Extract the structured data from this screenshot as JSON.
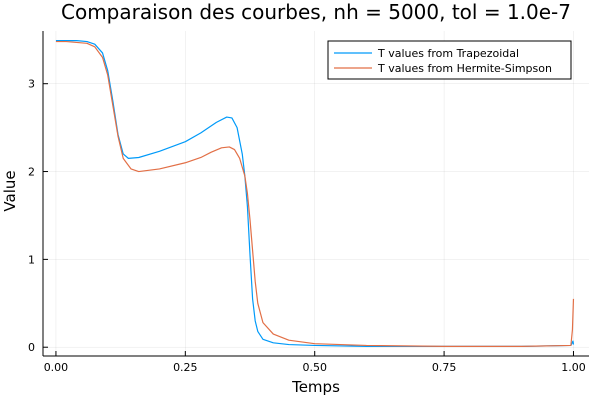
{
  "chart_data": {
    "type": "line",
    "title": "Comparaison des courbes, nh = 5000, tol = 1.0e-7",
    "xlabel": "Temps",
    "ylabel": "Value",
    "xlim": [
      -0.025,
      1.03
    ],
    "ylim": [
      -0.1,
      3.6
    ],
    "xticks": [
      0.0,
      0.25,
      0.5,
      0.75,
      1.0
    ],
    "xtick_labels": [
      "0.00",
      "0.25",
      "0.50",
      "0.75",
      "1.00"
    ],
    "yticks": [
      0,
      1,
      2,
      3
    ],
    "ytick_labels": [
      "0",
      "1",
      "2",
      "3"
    ],
    "grid": true,
    "legend_position": "top-right",
    "series": [
      {
        "name": "T values from Trapezoidal",
        "color": "#009af9",
        "points": [
          [
            0.0,
            3.49
          ],
          [
            0.02,
            3.49
          ],
          [
            0.04,
            3.49
          ],
          [
            0.06,
            3.48
          ],
          [
            0.075,
            3.45
          ],
          [
            0.09,
            3.35
          ],
          [
            0.1,
            3.15
          ],
          [
            0.11,
            2.8
          ],
          [
            0.12,
            2.42
          ],
          [
            0.13,
            2.2
          ],
          [
            0.14,
            2.15
          ],
          [
            0.16,
            2.16
          ],
          [
            0.2,
            2.23
          ],
          [
            0.25,
            2.34
          ],
          [
            0.28,
            2.44
          ],
          [
            0.31,
            2.56
          ],
          [
            0.33,
            2.62
          ],
          [
            0.34,
            2.61
          ],
          [
            0.35,
            2.5
          ],
          [
            0.36,
            2.2
          ],
          [
            0.365,
            1.95
          ],
          [
            0.37,
            1.6
          ],
          [
            0.375,
            1.05
          ],
          [
            0.38,
            0.55
          ],
          [
            0.385,
            0.3
          ],
          [
            0.39,
            0.18
          ],
          [
            0.4,
            0.09
          ],
          [
            0.42,
            0.05
          ],
          [
            0.45,
            0.03
          ],
          [
            0.5,
            0.02
          ],
          [
            0.6,
            0.01
          ],
          [
            0.75,
            0.01
          ],
          [
            0.9,
            0.01
          ],
          [
            0.995,
            0.02
          ],
          [
            0.999,
            0.07
          ],
          [
            1.0,
            0.03
          ]
        ]
      },
      {
        "name": "T values from Hermite-Simpson",
        "color": "#e26f46",
        "points": [
          [
            0.0,
            3.48
          ],
          [
            0.02,
            3.48
          ],
          [
            0.04,
            3.47
          ],
          [
            0.06,
            3.46
          ],
          [
            0.075,
            3.42
          ],
          [
            0.09,
            3.3
          ],
          [
            0.1,
            3.1
          ],
          [
            0.11,
            2.75
          ],
          [
            0.12,
            2.4
          ],
          [
            0.13,
            2.15
          ],
          [
            0.145,
            2.03
          ],
          [
            0.16,
            2.0
          ],
          [
            0.2,
            2.03
          ],
          [
            0.25,
            2.1
          ],
          [
            0.28,
            2.16
          ],
          [
            0.3,
            2.22
          ],
          [
            0.32,
            2.27
          ],
          [
            0.335,
            2.28
          ],
          [
            0.345,
            2.25
          ],
          [
            0.355,
            2.15
          ],
          [
            0.365,
            1.95
          ],
          [
            0.37,
            1.75
          ],
          [
            0.375,
            1.45
          ],
          [
            0.38,
            1.1
          ],
          [
            0.385,
            0.75
          ],
          [
            0.39,
            0.5
          ],
          [
            0.4,
            0.28
          ],
          [
            0.42,
            0.15
          ],
          [
            0.45,
            0.08
          ],
          [
            0.5,
            0.04
          ],
          [
            0.6,
            0.02
          ],
          [
            0.75,
            0.01
          ],
          [
            0.9,
            0.01
          ],
          [
            0.995,
            0.02
          ],
          [
            0.998,
            0.2
          ],
          [
            1.0,
            0.55
          ]
        ]
      }
    ]
  }
}
